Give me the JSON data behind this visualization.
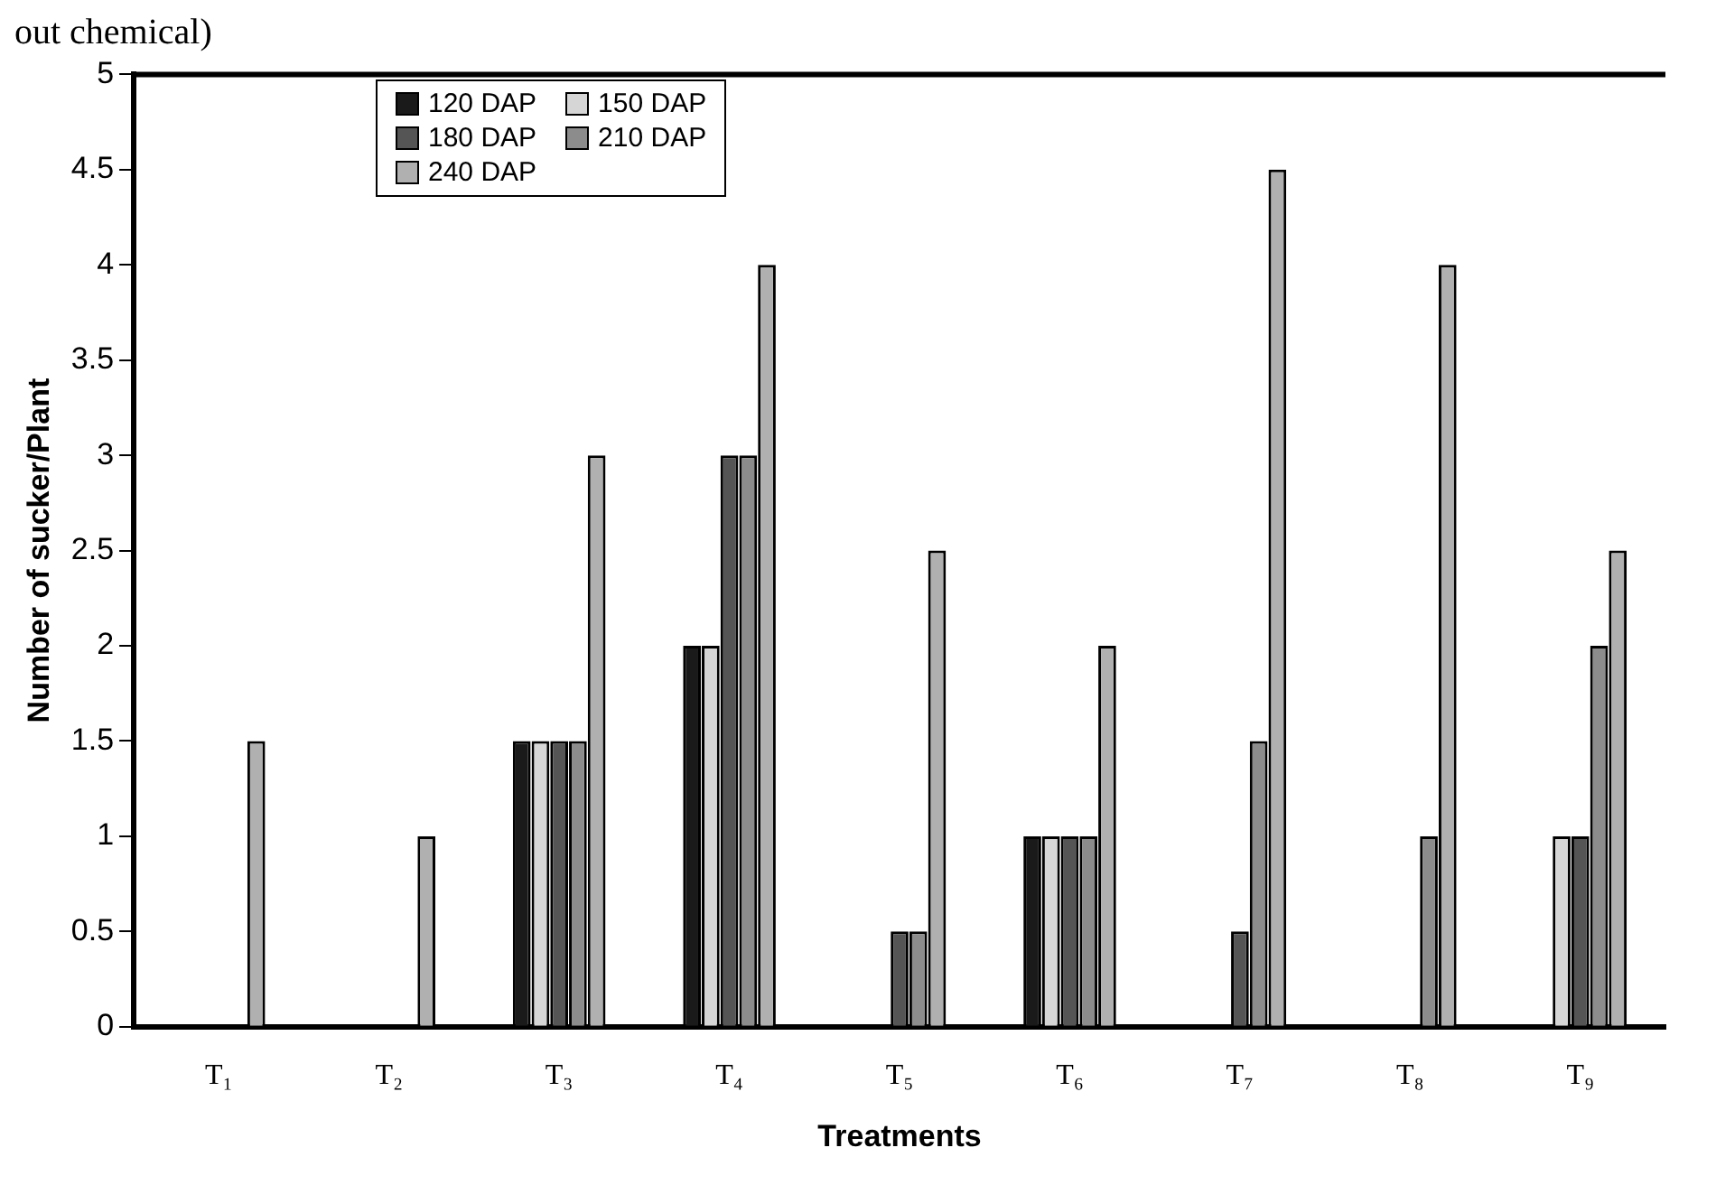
{
  "chart_data": {
    "type": "bar",
    "xlabel": "Treatments",
    "ylabel": "Number of sucker/Plant",
    "annotations": [
      "out chemical)"
    ],
    "categories": [
      "T₁",
      "T₂",
      "T₃",
      "T₄",
      "T₅",
      "T₆",
      "T₇",
      "T₈",
      "T₉"
    ],
    "series": [
      {
        "name": "120 DAP",
        "color": "#1a1a1a",
        "values": [
          0,
          0,
          1.5,
          2,
          0,
          1,
          0,
          0,
          0
        ]
      },
      {
        "name": "150 DAP",
        "color": "#d6d6d6",
        "values": [
          0,
          0,
          1.5,
          2,
          0,
          1,
          0,
          0,
          1
        ]
      },
      {
        "name": "180 DAP",
        "color": "#555555",
        "values": [
          0,
          0,
          1.5,
          3,
          0.5,
          1,
          0.5,
          0,
          1
        ]
      },
      {
        "name": "210 DAP",
        "color": "#8c8c8c",
        "values": [
          0,
          0,
          1.5,
          3,
          0.5,
          1,
          1.5,
          1,
          2
        ]
      },
      {
        "name": "240 DAP",
        "color": "#b0b0b0",
        "values": [
          1.5,
          1,
          3,
          4,
          2.5,
          2,
          4.5,
          4,
          2.5
        ]
      }
    ],
    "ylim": [
      0,
      5
    ],
    "yticks": [
      0,
      0.5,
      1,
      1.5,
      2,
      2.5,
      3,
      3.5,
      4,
      4.5,
      5
    ],
    "grid": false,
    "legend": "top left"
  }
}
